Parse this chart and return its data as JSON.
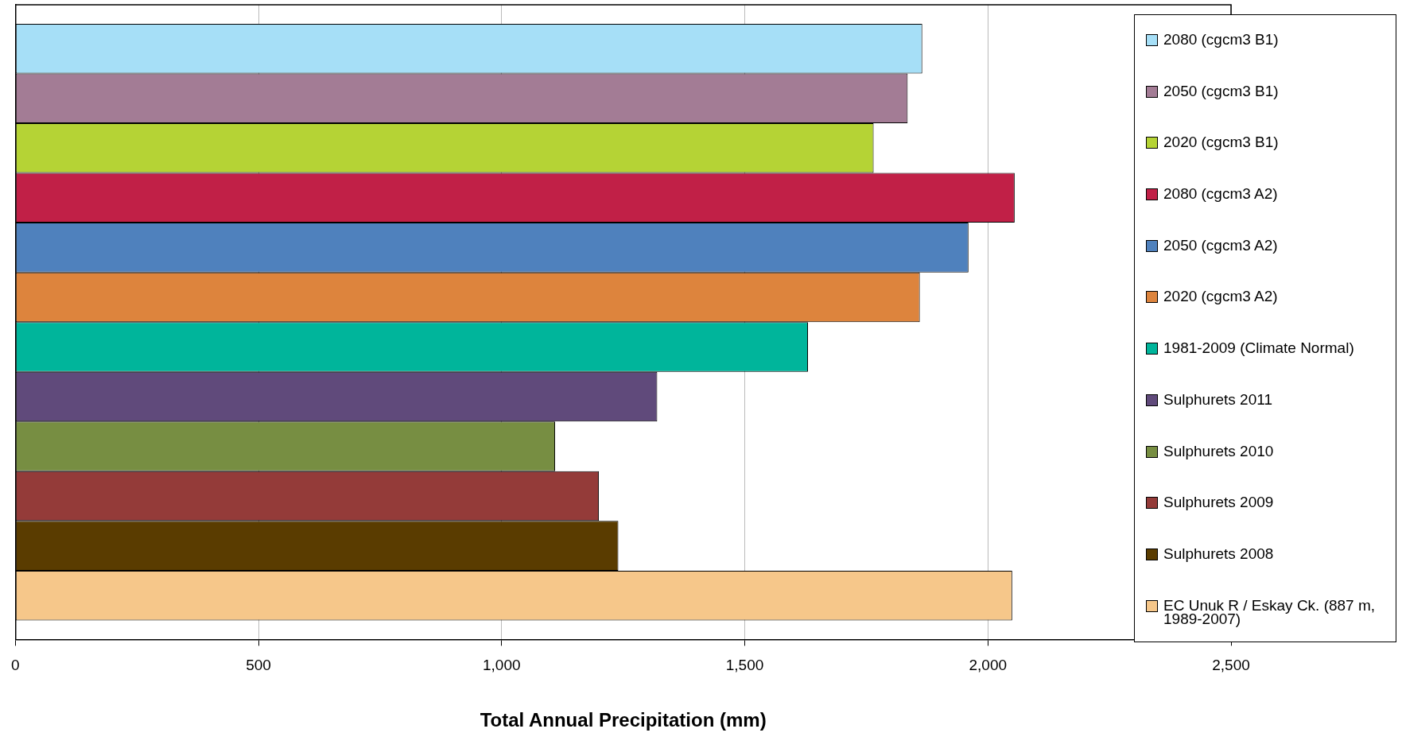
{
  "chart_data": {
    "type": "bar",
    "orientation": "horizontal",
    "xlabel": "Total Annual Precipitation (mm)",
    "categories": [
      null
    ],
    "series": [
      {
        "name": "2080 (cgcm3 B1)",
        "color": "#a6dff7",
        "values": [
          1865
        ]
      },
      {
        "name": "2050 (cgcm3 B1)",
        "color": "#a37c95",
        "values": [
          1835
        ]
      },
      {
        "name": "2020 (cgcm3 B1)",
        "color": "#b5d335",
        "values": [
          1765
        ]
      },
      {
        "name": "2080 (cgcm3 A2)",
        "color": "#c12047",
        "values": [
          2055
        ]
      },
      {
        "name": "2050 (cgcm3 A2)",
        "color": "#4f81bd",
        "values": [
          1960
        ]
      },
      {
        "name": "2020 (cgcm3 A2)",
        "color": "#dd843d",
        "values": [
          1860
        ]
      },
      {
        "name": "1981-2009 (Climate Normal)",
        "color": "#00b59b",
        "values": [
          1630
        ]
      },
      {
        "name": "Sulphurets 2011",
        "color": "#604a7b",
        "values": [
          1320
        ]
      },
      {
        "name": "Sulphurets 2010",
        "color": "#778e42",
        "values": [
          1110
        ]
      },
      {
        "name": "Sulphurets 2009",
        "color": "#943b39",
        "values": [
          1200
        ]
      },
      {
        "name": "Sulphurets 2008",
        "color": "#5a3c00",
        "values": [
          1240
        ]
      },
      {
        "name": "EC Unuk R / Eskay Ck. (887 m, 1989-2007)",
        "color": "#f6c78a",
        "values": [
          2050
        ]
      }
    ],
    "xlim": [
      0,
      2500
    ],
    "xticks": [
      0,
      500,
      {
        "value": 1000,
        "label": "1,000"
      },
      {
        "value": 1500,
        "label": "1,500"
      },
      {
        "value": 2000,
        "label": "2,000"
      },
      {
        "value": 2500,
        "label": "2,500"
      }
    ],
    "grid": "x",
    "legend": "right",
    "tick_labels": "x"
  }
}
